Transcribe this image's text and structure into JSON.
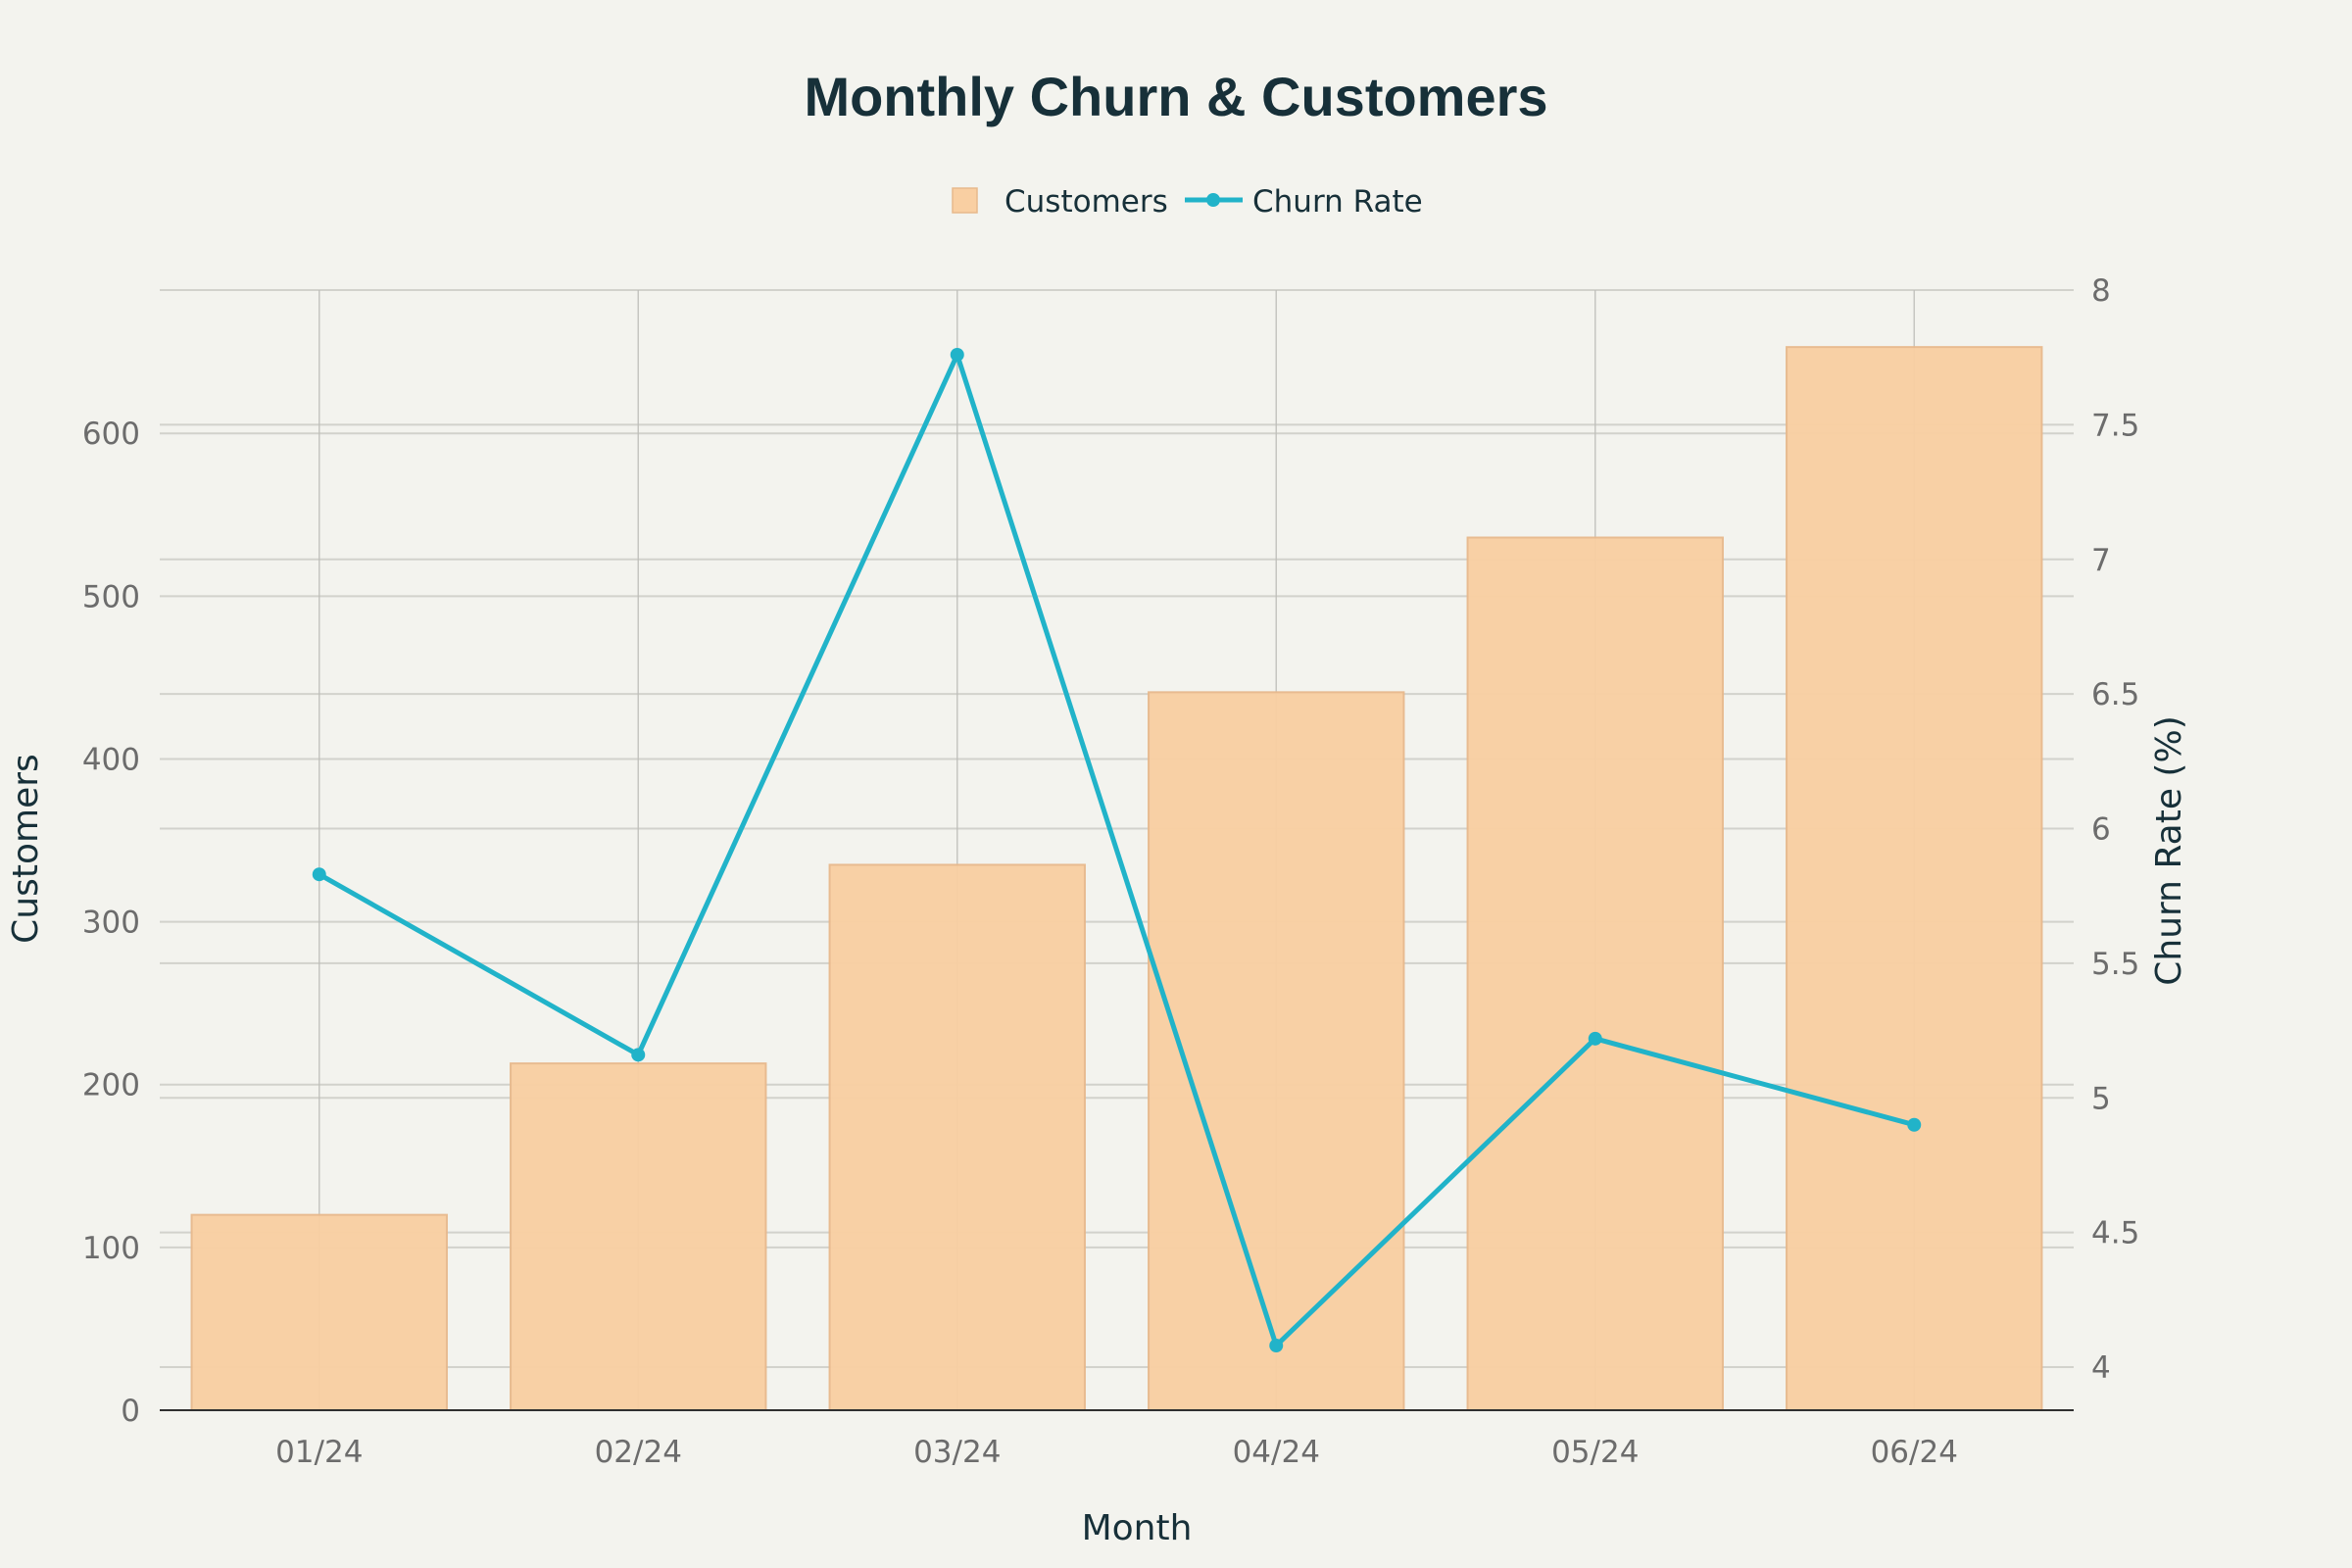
{
  "chart_data": {
    "type": "bar",
    "title": "Monthly Churn & Customers",
    "xlabel": "Month",
    "ylabel": "Customers",
    "y2label": "Churn Rate (%)",
    "categories": [
      "01/24",
      "02/24",
      "03/24",
      "04/24",
      "05/24",
      "06/24"
    ],
    "series": [
      {
        "name": "Customers",
        "type": "bar",
        "axis": "left",
        "values": [
          120,
          213,
          335,
          441,
          536,
          653
        ]
      },
      {
        "name": "Churn Rate",
        "type": "line",
        "axis": "right",
        "values": [
          5.83,
          5.16,
          7.76,
          4.08,
          5.22,
          4.9
        ]
      }
    ],
    "ylim": [
      0,
      688
    ],
    "y2lim": [
      3.84,
      8.0
    ],
    "yticks": [
      0,
      100,
      200,
      300,
      400,
      500,
      600
    ],
    "y2ticks": [
      4,
      4.5,
      5,
      5.5,
      6,
      6.5,
      7,
      7.5,
      8
    ],
    "grid": true,
    "legend": "top-center",
    "colors": {
      "background": "#f3f3ee",
      "bar_fill": "#f9cfa2",
      "bar_stroke": "#e8b98c",
      "line": "#21b3c9",
      "grid": "#d2d2cc",
      "vertical_grid": "#bcbcb7",
      "text_dark": "#173039",
      "tick_text": "#6c6c6c",
      "axis": "#2f2f2f"
    }
  }
}
